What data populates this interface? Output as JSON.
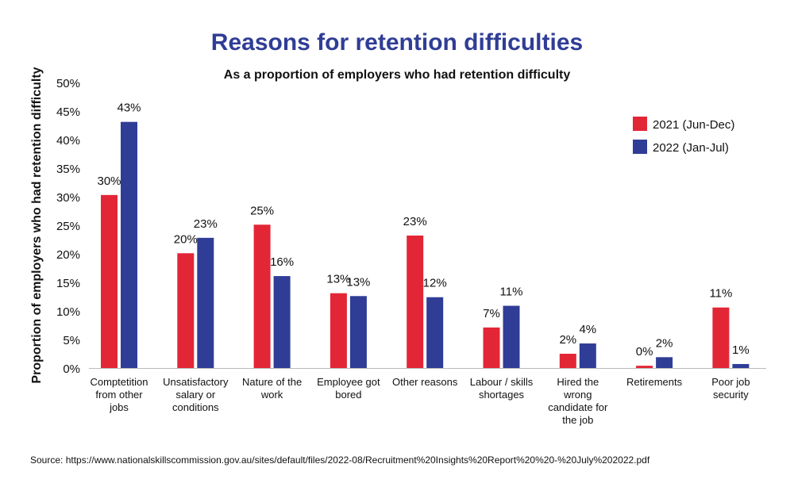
{
  "chart_data": {
    "type": "bar",
    "title": "Reasons for retention difficulties",
    "subtitle": "As a proportion of employers who had retention difficulty",
    "xlabel": "",
    "ylabel": "Proportion of employers who had retention difficulty",
    "ylim": [
      0,
      50
    ],
    "yticks": [
      "0%",
      "5%",
      "10%",
      "15%",
      "20%",
      "25%",
      "30%",
      "35%",
      "40%",
      "45%",
      "50%"
    ],
    "grid": false,
    "legend_position": "top-right",
    "categories": [
      [
        "Comptetition",
        "from other",
        "jobs"
      ],
      [
        "Unsatisfactory",
        "salary or",
        "conditions"
      ],
      [
        "Nature of the",
        "work"
      ],
      [
        "Employee got",
        "bored"
      ],
      [
        "Other reasons"
      ],
      [
        "Labour / skills",
        "shortages"
      ],
      [
        "Hired the",
        "wrong",
        "candidate for",
        "the job"
      ],
      [
        "Retirements"
      ],
      [
        "Poor job",
        "security"
      ]
    ],
    "series": [
      {
        "name": "2021 (Jun-Dec)",
        "color": "#e32636",
        "values": [
          30.3,
          20.1,
          25.1,
          13.1,
          23.2,
          7.1,
          2.5,
          0.4,
          10.6
        ],
        "labels": [
          "30%",
          "20%",
          "25%",
          "13%",
          "23%",
          "7%",
          "2%",
          "0%",
          "11%"
        ]
      },
      {
        "name": "2022 (Jan-Jul)",
        "color": "#2f3d96",
        "values": [
          43.1,
          22.8,
          16.1,
          12.6,
          12.4,
          10.9,
          4.3,
          1.9,
          0.7
        ],
        "labels": [
          "43%",
          "23%",
          "16%",
          "13%",
          "12%",
          "11%",
          "4%",
          "2%",
          "1%"
        ]
      }
    ]
  },
  "source": "Source: https://www.nationalskillscommission.gov.au/sites/default/files/2022-08/Recruitment%20Insights%20Report%20%20-%20July%202022.pdf",
  "colors": {
    "title": "#2f3d96",
    "text": "#111111",
    "axis": "#bbbbbb"
  }
}
